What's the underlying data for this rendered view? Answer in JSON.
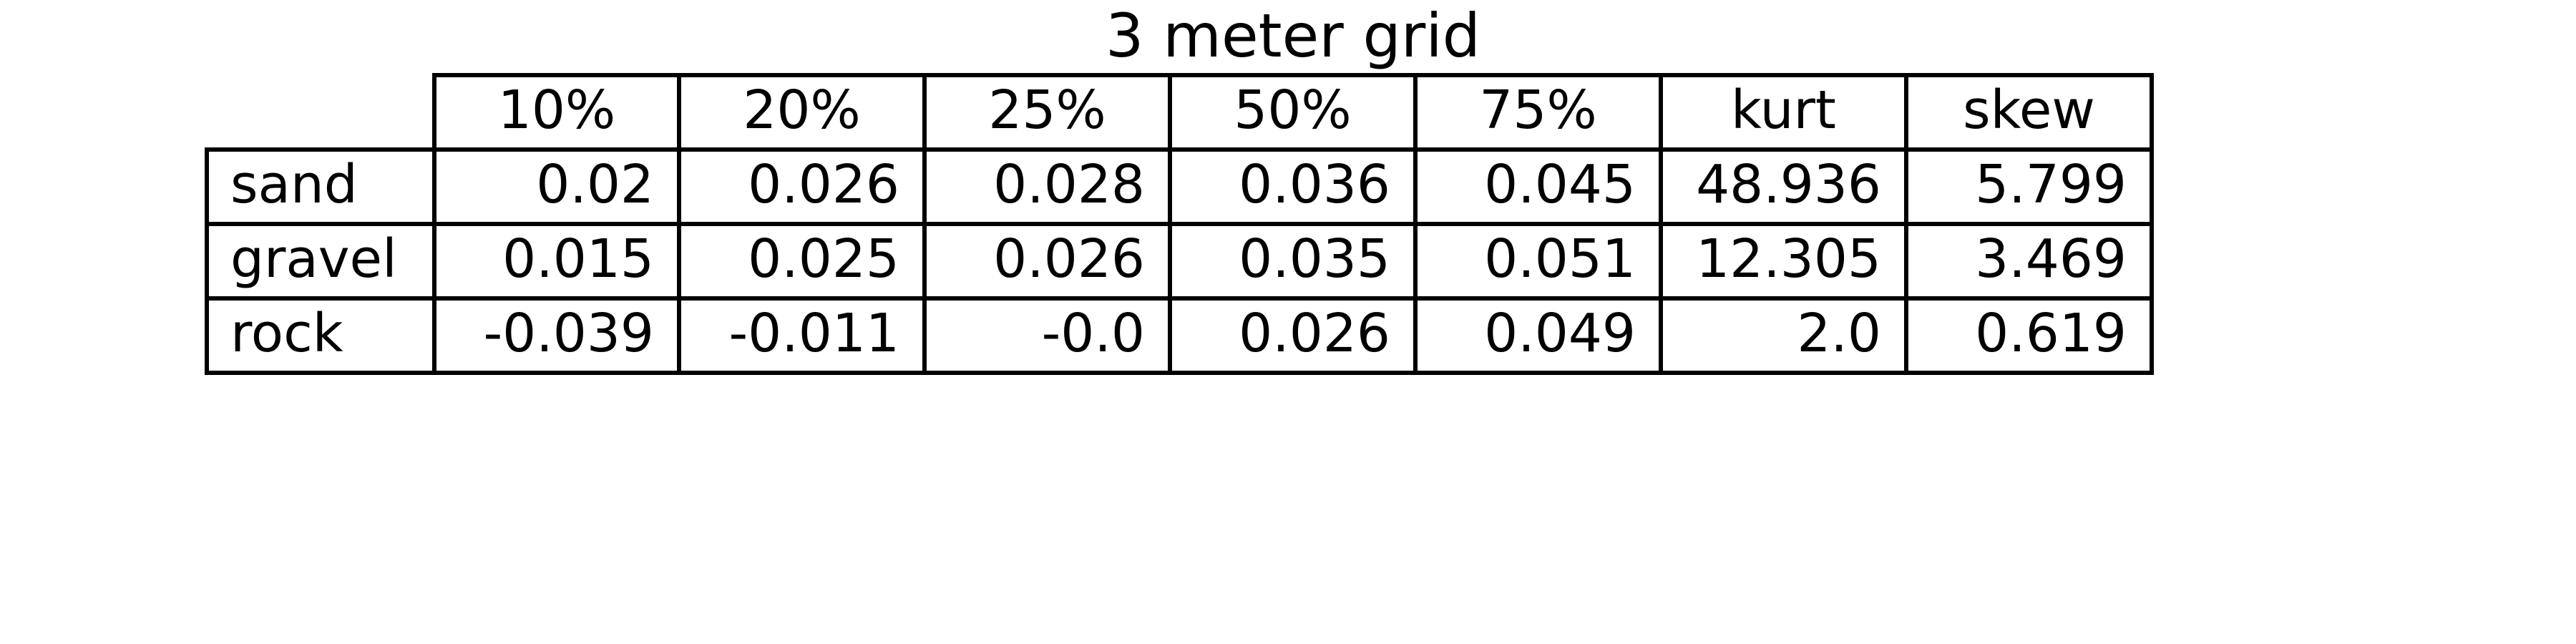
{
  "chart_data": {
    "type": "table",
    "title": "3 meter grid",
    "columns": [
      "10%",
      "20%",
      "25%",
      "50%",
      "75%",
      "kurt",
      "skew"
    ],
    "rows": [
      {
        "label": "sand",
        "values": [
          "0.02",
          "0.026",
          "0.028",
          "0.036",
          "0.045",
          "48.936",
          "5.799"
        ]
      },
      {
        "label": "gravel",
        "values": [
          "0.015",
          "0.025",
          "0.026",
          "0.035",
          "0.051",
          "12.305",
          "3.469"
        ]
      },
      {
        "label": "rock",
        "values": [
          "-0.039",
          "-0.011",
          "-0.0",
          "0.026",
          "0.049",
          "2.0",
          "0.619"
        ]
      }
    ]
  }
}
